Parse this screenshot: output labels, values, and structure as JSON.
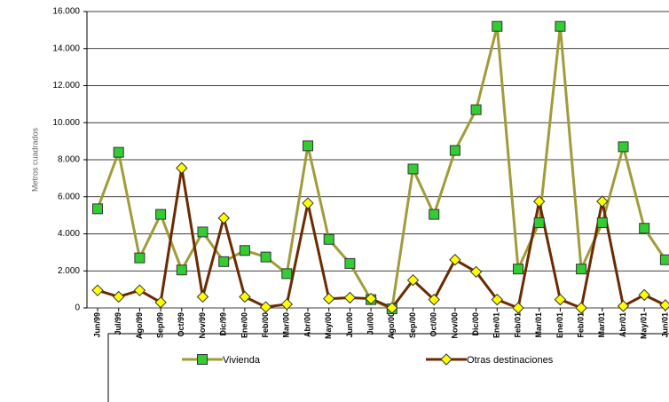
{
  "chart_data": {
    "type": "line",
    "y_label": "Metros cuadrados",
    "categories": [
      "Jun/99",
      "Jul/99",
      "Ago/99",
      "Sep/99",
      "Oct/99",
      "Nov/99",
      "Dic/99",
      "Ene/00",
      "Feb/00",
      "Mar/00",
      "Abr/00",
      "May/00",
      "Jun/00",
      "Jul/00",
      "Ago/00",
      "Sep/00",
      "Oct/00",
      "Nov/00",
      "Dic/00",
      "Ene/01",
      "Feb/01",
      "Mar/01",
      "Ene/01",
      "Feb/01",
      "Mar/01",
      "Abr/01",
      "May/01",
      "Jun/01"
    ],
    "series": [
      {
        "name": "Vivienda",
        "color": "#a09c3a",
        "marker_color": "#33cc33",
        "marker": "square",
        "values": [
          5350,
          8400,
          2700,
          5050,
          2050,
          4100,
          2500,
          3100,
          2750,
          1850,
          8750,
          3700,
          2400,
          450,
          -50,
          7500,
          5050,
          8500,
          10700,
          15200,
          2100,
          4600,
          15200,
          2100,
          4600,
          8700,
          4300,
          2600
        ]
      },
      {
        "name": "Otras destinaciones",
        "color": "#6b2a00",
        "marker_color": "#ffff00",
        "marker": "diamond",
        "values": [
          950,
          600,
          950,
          300,
          7550,
          600,
          4850,
          600,
          50,
          200,
          5650,
          500,
          550,
          500,
          0,
          1500,
          450,
          2600,
          1950,
          450,
          0,
          5750,
          450,
          0,
          5750,
          100,
          700,
          150
        ]
      }
    ],
    "ylim": [
      0,
      16000
    ],
    "yticks": [
      0,
      {
        "value": 2000,
        "label": "2.000"
      },
      {
        "value": 4000,
        "label": "4.000"
      },
      {
        "value": 6000,
        "label": "6.000"
      },
      {
        "value": 8000,
        "label": "8.000"
      },
      {
        "value": 10000,
        "label": "10.000"
      },
      {
        "value": 12000,
        "label": "12.000"
      },
      {
        "value": 14000,
        "label": "14.000"
      },
      {
        "value": 16000,
        "label": "16.000"
      }
    ],
    "grid": true
  }
}
